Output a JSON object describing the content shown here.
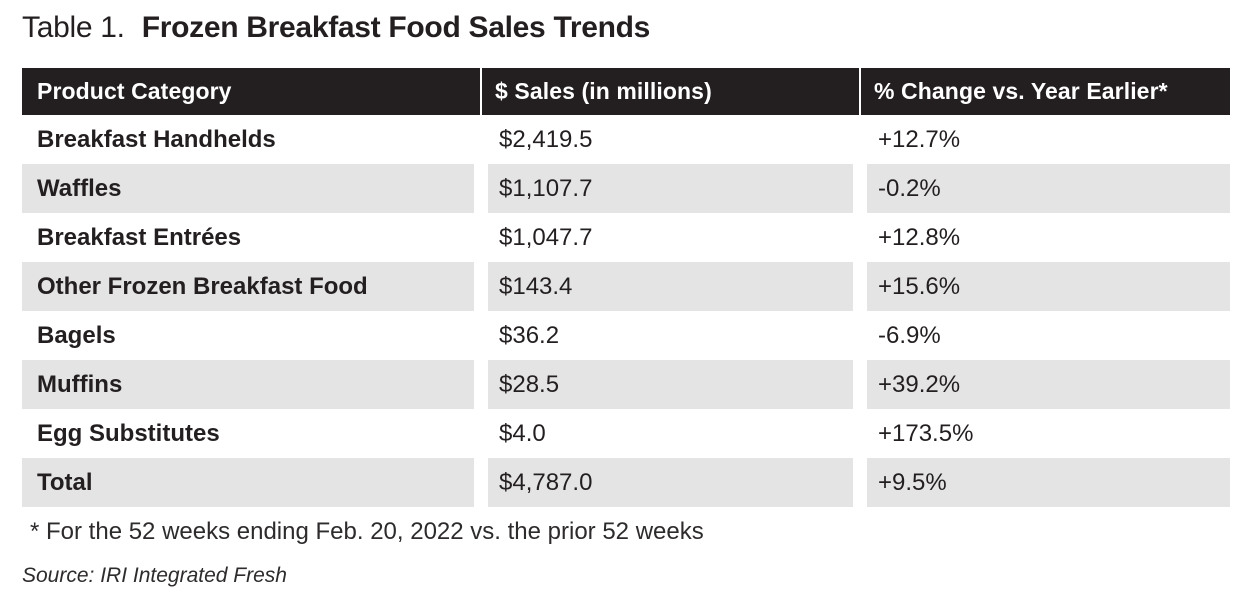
{
  "title": {
    "prefix": "Table 1.",
    "main": "Frozen Breakfast Food Sales Trends"
  },
  "table": {
    "columns": [
      "Product Category",
      "$ Sales (in millions)",
      "% Change vs. Year Earlier*"
    ],
    "rows": [
      {
        "category": "Breakfast Handhelds",
        "sales": "$2,419.5",
        "change": "+12.7%"
      },
      {
        "category": "Waffles",
        "sales": "$1,107.7",
        "change": "-0.2%"
      },
      {
        "category": "Breakfast Entrées",
        "sales": "$1,047.7",
        "change": "+12.8%"
      },
      {
        "category": "Other Frozen Breakfast Food",
        "sales": "$143.4",
        "change": "+15.6%"
      },
      {
        "category": "Bagels",
        "sales": "$36.2",
        "change": "-6.9%"
      },
      {
        "category": "Muffins",
        "sales": "$28.5",
        "change": "+39.2%"
      },
      {
        "category": "Egg Substitutes",
        "sales": "$4.0",
        "change": "+173.5%"
      },
      {
        "category": "Total",
        "sales": "$4,787.0",
        "change": "+9.5%"
      }
    ]
  },
  "footnote": "* For the 52 weeks ending Feb. 20, 2022 vs. the prior 52 weeks",
  "source": "Source: IRI Integrated Fresh",
  "colors": {
    "header_bg": "#231f20",
    "header_text": "#ffffff",
    "stripe": "#e4e4e4",
    "text": "#231f20"
  },
  "chart_data": {
    "type": "table",
    "title": "Table 1. Frozen Breakfast Food Sales Trends",
    "columns": [
      "Product Category",
      "$ Sales (in millions)",
      "% Change vs. Year Earlier*"
    ],
    "rows": [
      [
        "Breakfast Handhelds",
        2419.5,
        12.7
      ],
      [
        "Waffles",
        1107.7,
        -0.2
      ],
      [
        "Breakfast Entrées",
        1047.7,
        12.8
      ],
      [
        "Other Frozen Breakfast Food",
        143.4,
        15.6
      ],
      [
        "Bagels",
        36.2,
        -6.9
      ],
      [
        "Muffins",
        28.5,
        39.2
      ],
      [
        "Egg Substitutes",
        4.0,
        173.5
      ],
      [
        "Total",
        4787.0,
        9.5
      ]
    ],
    "footnote": "* For the 52 weeks ending Feb. 20, 2022 vs. the prior 52 weeks",
    "source": "Source: IRI Integrated Fresh"
  }
}
